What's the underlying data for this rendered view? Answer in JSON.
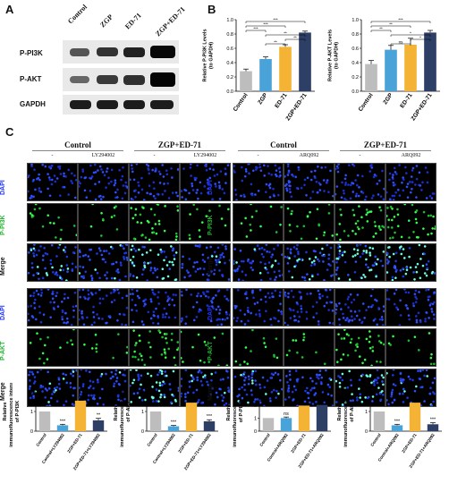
{
  "panel_a": {
    "letter": "A",
    "conditions": [
      "Control",
      "ZGP",
      "ED-71",
      "ZGP+ED-71"
    ],
    "rows": [
      "P-PI3K",
      "P-AKT",
      "GAPDH"
    ]
  },
  "panel_b": {
    "letter": "B",
    "colors": {
      "Control": "#bdbdbd",
      "ZGP": "#4aa3d8",
      "ED-71": "#f5b335",
      "ZGP+ED-71": "#2e3f66"
    }
  },
  "panel_c": {
    "letter": "C",
    "groups": [
      {
        "title": "Control",
        "columns": [
          "-",
          "LY294002"
        ]
      },
      {
        "title": "ZGP+ED-71",
        "columns": [
          "-",
          "LY294002"
        ]
      },
      {
        "title": "Control",
        "columns": [
          "-",
          "ARQ092"
        ]
      },
      {
        "title": "ZGP+ED-71",
        "columns": [
          "-",
          "ARQ092"
        ]
      }
    ],
    "row_labels_top": [
      "DAPI",
      "P-PI3K",
      "Merge"
    ],
    "row_labels_bottom": [
      "DAPI",
      "P-AKT",
      "Merge"
    ]
  },
  "chart_data": [
    {
      "id": "b-pi3k",
      "type": "bar",
      "categories": [
        "Control",
        "ZGP",
        "ED-71",
        "ZGP+ED-71"
      ],
      "values": [
        0.28,
        0.45,
        0.62,
        0.82
      ],
      "errors": [
        0.03,
        0.03,
        0.03,
        0.02
      ],
      "ylabel": "Relative P-PI3K Levels (to GAPDH)",
      "ylim": [
        0,
        1.0
      ],
      "yticks": [
        "0.0",
        "0.2",
        "0.4",
        "0.6",
        "0.8",
        "1.0"
      ],
      "annotations": [
        "***",
        "***",
        "***",
        "**",
        "**",
        "**"
      ]
    },
    {
      "id": "b-akt",
      "type": "bar",
      "categories": [
        "Control",
        "ZGP",
        "ED-71",
        "ZGP+ED-71"
      ],
      "values": [
        0.38,
        0.58,
        0.65,
        0.82
      ],
      "errors": [
        0.05,
        0.06,
        0.09,
        0.03
      ],
      "ylabel": "Relative P-AKT Levels (to GAPDH)",
      "ylim": [
        0,
        1.0
      ],
      "yticks": [
        "0.0",
        "0.2",
        "0.4",
        "0.6",
        "0.8",
        "1.0"
      ],
      "annotations": [
        "***",
        "**",
        "**",
        "*",
        "*",
        "ns"
      ]
    },
    {
      "id": "c-pi3k-ly",
      "type": "bar",
      "categories": [
        "Control",
        "Control+LY294002",
        "ZGP+ED-71",
        "ZGP+ED-71+LY294002"
      ],
      "values": [
        1.0,
        0.3,
        1.55,
        0.55
      ],
      "errors": [
        0.0,
        0.05,
        0.18,
        0.1
      ],
      "ylabel": "Relative immunofluorescence intensity of P-PI3K",
      "ylim": [
        0,
        2.0
      ],
      "yticks": [
        "0",
        "1",
        "2"
      ],
      "annotations": [
        "",
        "***",
        "*",
        "**"
      ]
    },
    {
      "id": "c-akt-ly",
      "type": "bar",
      "categories": [
        "Control",
        "Control+LY294002",
        "ZGP+ED-71",
        "ZGP+ED-71+LY294002"
      ],
      "values": [
        1.0,
        0.25,
        1.45,
        0.5
      ],
      "errors": [
        0.0,
        0.04,
        0.12,
        0.08
      ],
      "ylabel": "Relative immunofluorescence intensity of P-AKT",
      "ylim": [
        0,
        2.0
      ],
      "yticks": [
        "0",
        "1",
        "2"
      ],
      "annotations": [
        "",
        "***",
        "**",
        "***"
      ]
    },
    {
      "id": "c-pi3k-arq",
      "type": "bar",
      "categories": [
        "Control",
        "Control+ARQ092",
        "ZGP+ED-71",
        "ZGP+ED-71+ARQ092"
      ],
      "values": [
        1.0,
        1.0,
        1.95,
        2.0
      ],
      "errors": [
        0.0,
        0.08,
        0.1,
        0.3
      ],
      "ylabel": "Relative immunofluorescence intensity of P-PI3K",
      "ylim": [
        0,
        3.0
      ],
      "yticks": [
        "0",
        "1",
        "2",
        "3"
      ],
      "annotations": [
        "",
        "ns",
        "***",
        "**"
      ]
    },
    {
      "id": "c-akt-arq",
      "type": "bar",
      "categories": [
        "Control",
        "Control+ARQ092",
        "ZGP+ED-71",
        "ZGP+ED-71+ARQ092"
      ],
      "values": [
        1.0,
        0.3,
        1.45,
        0.35
      ],
      "errors": [
        0.0,
        0.05,
        0.15,
        0.08
      ],
      "ylabel": "Relative immunofluorescence intensity of P-AKT",
      "ylim": [
        0,
        2.0
      ],
      "yticks": [
        "0",
        "1",
        "2"
      ],
      "annotations": [
        "",
        "***",
        "*",
        "***"
      ]
    }
  ]
}
